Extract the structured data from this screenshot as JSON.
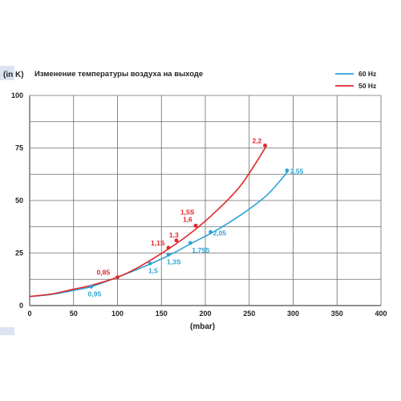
{
  "colors": {
    "s60": "#2ba3d6",
    "s50": "#e0282c",
    "grid": "#6b6b6b",
    "edge": "#dce3f0"
  },
  "chart_data": {
    "type": "line",
    "title": "Изменение температуры воздуха на выходе",
    "ylabel": "(in K)",
    "xlabel": "(mbar)",
    "xlim": [
      0,
      400
    ],
    "ylim": [
      0,
      100
    ],
    "xticks": [
      "0",
      "50",
      "100",
      "150",
      "200",
      "250",
      "300",
      "350",
      "400"
    ],
    "yticks": [
      "0",
      "25",
      "50",
      "75",
      "100"
    ],
    "grid": true,
    "legend_position": "top-right",
    "series": [
      {
        "name": "60 Hz",
        "color": "#2ba3d6",
        "curve": [
          [
            0,
            4.3
          ],
          [
            25,
            5.3
          ],
          [
            50,
            7.2
          ],
          [
            70,
            9
          ],
          [
            100,
            13.5
          ],
          [
            130,
            18.5
          ],
          [
            160,
            24.2
          ],
          [
            185,
            29.8
          ],
          [
            210,
            35.2
          ],
          [
            240,
            43
          ],
          [
            270,
            52.5
          ],
          [
            295,
            64.3
          ]
        ],
        "points": [
          {
            "x": 70,
            "y": 9,
            "label": "0,95"
          },
          {
            "x": 137,
            "y": 20,
            "label": "1,5"
          },
          {
            "x": 158,
            "y": 24.2,
            "label": "1,3S"
          },
          {
            "x": 183,
            "y": 29.8,
            "label": "1,75S"
          },
          {
            "x": 206,
            "y": 35,
            "label": "2,05"
          },
          {
            "x": 293,
            "y": 64.3,
            "label": "2,55"
          }
        ]
      },
      {
        "name": "50 Hz",
        "color": "#e0282c",
        "curve": [
          [
            0,
            4.3
          ],
          [
            25,
            5.5
          ],
          [
            50,
            7.8
          ],
          [
            70,
            9.6
          ],
          [
            100,
            13.5
          ],
          [
            125,
            18.5
          ],
          [
            160,
            27.5
          ],
          [
            185,
            35
          ],
          [
            210,
            44
          ],
          [
            240,
            57
          ],
          [
            270,
            76.2
          ]
        ],
        "points": [
          {
            "x": 100,
            "y": 13.5,
            "label": "0,85"
          },
          {
            "x": 158,
            "y": 27.5,
            "label": "1,1S"
          },
          {
            "x": 167,
            "y": 31,
            "label": "1,3"
          },
          {
            "x": 189,
            "y": 38,
            "label": "1,6"
          },
          {
            "x": 189,
            "y": 38,
            "label": "1,5S"
          },
          {
            "x": 268,
            "y": 76.2,
            "label": "2,2"
          }
        ]
      }
    ]
  }
}
